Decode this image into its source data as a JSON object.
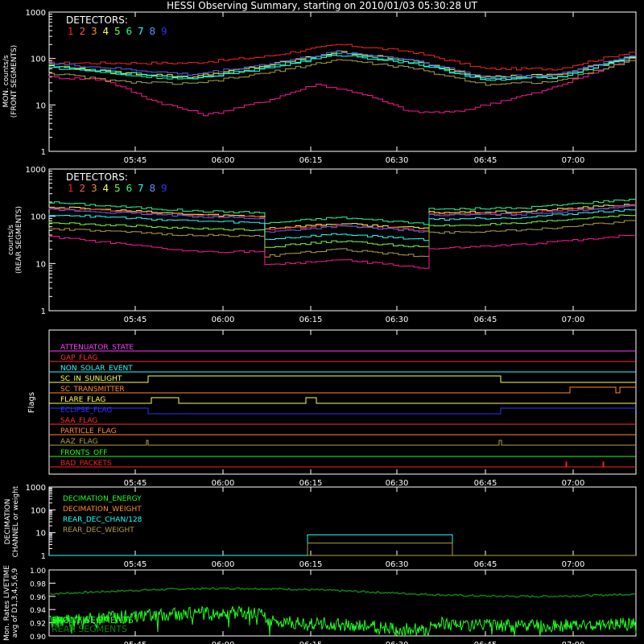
{
  "title": "HESSI Observing Summary, starting on 2010/01/03 05:30:28 UT",
  "time_ticks": [
    "05:45",
    "06:00",
    "06:15",
    "06:30",
    "06:45",
    "07:00"
  ],
  "detectors_label": "DETECTORS:",
  "detector_numbers": [
    "1",
    "2",
    "3",
    "4",
    "5",
    "6",
    "7",
    "8",
    "9"
  ],
  "detector_colors": [
    "#ff2020",
    "#ff5050",
    "#ff8a30",
    "#ffff50",
    "#7cff30",
    "#20ff90",
    "#20ffff",
    "#6090ff",
    "#3030ff"
  ],
  "chart_data": [
    {
      "type": "line",
      "name": "front",
      "ylabel": [
        "MON. counts/s",
        "(FRONT SEGMENTS)"
      ],
      "y_tick_labels": [
        "1",
        "10",
        "100",
        "1000"
      ],
      "ylim": [
        1,
        1000
      ],
      "log_y": true,
      "x_range_minutes_after_0530": [
        0,
        80
      ],
      "series": [
        {
          "color": "#ff2020",
          "values": [
            [
              0,
              80
            ],
            [
              10,
              80
            ],
            [
              20,
              80
            ],
            [
              30,
              110
            ],
            [
              40,
              200
            ],
            [
              50,
              140
            ],
            [
              60,
              60
            ],
            [
              70,
              60
            ],
            [
              80,
              140
            ]
          ]
        },
        {
          "color": "#ff1493",
          "values": [
            [
              0,
              40
            ],
            [
              8,
              35
            ],
            [
              15,
              12
            ],
            [
              22,
              6
            ],
            [
              30,
              12
            ],
            [
              37,
              28
            ],
            [
              43,
              18
            ],
            [
              50,
              7
            ],
            [
              56,
              7
            ],
            [
              62,
              12
            ],
            [
              68,
              20
            ],
            [
              75,
              50
            ],
            [
              80,
              100
            ]
          ]
        },
        {
          "color": "#ffff50",
          "values": [
            [
              0,
              70
            ],
            [
              10,
              50
            ],
            [
              20,
              40
            ],
            [
              30,
              70
            ],
            [
              40,
              140
            ],
            [
              50,
              90
            ],
            [
              60,
              40
            ],
            [
              70,
              45
            ],
            [
              80,
              110
            ]
          ]
        },
        {
          "color": "#20ff90",
          "values": [
            [
              0,
              75
            ],
            [
              10,
              45
            ],
            [
              20,
              35
            ],
            [
              30,
              65
            ],
            [
              40,
              130
            ],
            [
              50,
              85
            ],
            [
              60,
              35
            ],
            [
              70,
              40
            ],
            [
              80,
              110
            ]
          ]
        },
        {
          "color": "#20ffff",
          "values": [
            [
              0,
              65
            ],
            [
              10,
              50
            ],
            [
              20,
              38
            ],
            [
              30,
              60
            ],
            [
              40,
              120
            ],
            [
              50,
              80
            ],
            [
              60,
              35
            ],
            [
              70,
              40
            ],
            [
              80,
              105
            ]
          ]
        },
        {
          "color": "#6060ff",
          "values": [
            [
              0,
              80
            ],
            [
              10,
              60
            ],
            [
              20,
              45
            ],
            [
              30,
              75
            ],
            [
              40,
              140
            ],
            [
              50,
              95
            ],
            [
              60,
              40
            ],
            [
              70,
              45
            ],
            [
              80,
              120
            ]
          ]
        },
        {
          "color": "#b0a040",
          "values": [
            [
              0,
              50
            ],
            [
              10,
              32
            ],
            [
              20,
              28
            ],
            [
              30,
              48
            ],
            [
              40,
              95
            ],
            [
              50,
              62
            ],
            [
              60,
              28
            ],
            [
              70,
              32
            ],
            [
              80,
              90
            ]
          ]
        }
      ]
    },
    {
      "type": "line",
      "name": "rear",
      "ylabel": [
        "counts/s",
        "(REAR SEGMENTS)"
      ],
      "y_tick_labels": [
        "1",
        "10",
        "100",
        "1000"
      ],
      "ylim": [
        1,
        1000
      ],
      "log_y": true,
      "x_range_minutes_after_0530": [
        0,
        80
      ],
      "series": [
        {
          "color": "#20ff90",
          "values": [
            [
              0,
              200
            ],
            [
              20,
              130
            ],
            [
              29.5,
              120
            ],
            [
              29.6,
              70
            ],
            [
              40,
              95
            ],
            [
              52,
              70
            ],
            [
              52.1,
              140
            ],
            [
              65,
              150
            ],
            [
              80,
              230
            ]
          ]
        },
        {
          "color": "#ffff50",
          "values": [
            [
              0,
              160
            ],
            [
              20,
              110
            ],
            [
              29.5,
              100
            ],
            [
              29.6,
              55
            ],
            [
              40,
              70
            ],
            [
              52,
              55
            ],
            [
              52.1,
              120
            ],
            [
              65,
              125
            ],
            [
              80,
              180
            ]
          ]
        },
        {
          "color": "#ff2020",
          "values": [
            [
              0,
              150
            ],
            [
              20,
              105
            ],
            [
              29.5,
              95
            ],
            [
              29.6,
              50
            ],
            [
              40,
              65
            ],
            [
              52,
              50
            ],
            [
              52.1,
              110
            ],
            [
              65,
              115
            ],
            [
              80,
              170
            ]
          ]
        },
        {
          "color": "#6060ff",
          "values": [
            [
              0,
              140
            ],
            [
              20,
              100
            ],
            [
              29.5,
              90
            ],
            [
              29.6,
              45
            ],
            [
              40,
              62
            ],
            [
              52,
              48
            ],
            [
              52.1,
              105
            ],
            [
              65,
              110
            ],
            [
              80,
              165
            ]
          ]
        },
        {
          "color": "#20ffff",
          "values": [
            [
              0,
              110
            ],
            [
              20,
              80
            ],
            [
              29.5,
              72
            ],
            [
              29.6,
              32
            ],
            [
              40,
              42
            ],
            [
              52,
              32
            ],
            [
              52.1,
              85
            ],
            [
              65,
              95
            ],
            [
              80,
              140
            ]
          ]
        },
        {
          "color": "#7cff30",
          "values": [
            [
              0,
              75
            ],
            [
              20,
              55
            ],
            [
              29.5,
              52
            ],
            [
              29.6,
              22
            ],
            [
              40,
              30
            ],
            [
              52,
              22
            ],
            [
              52.1,
              62
            ],
            [
              65,
              70
            ],
            [
              80,
              110
            ]
          ]
        },
        {
          "color": "#b0a040",
          "values": [
            [
              0,
              55
            ],
            [
              20,
              40
            ],
            [
              29.5,
              38
            ],
            [
              29.6,
              14
            ],
            [
              40,
              20
            ],
            [
              52,
              14
            ],
            [
              52.1,
              45
            ],
            [
              65,
              50
            ],
            [
              80,
              80
            ]
          ]
        },
        {
          "color": "#ff1493",
          "values": [
            [
              0,
              38
            ],
            [
              20,
              18
            ],
            [
              29.5,
              18
            ],
            [
              29.6,
              9
            ],
            [
              40,
              12
            ],
            [
              52,
              8
            ],
            [
              52.1,
              20
            ],
            [
              65,
              25
            ],
            [
              80,
              40
            ]
          ]
        }
      ]
    }
  ],
  "flags": {
    "ylabel": "Flags",
    "items": [
      {
        "label": "ATTENUATOR_STATE",
        "color": "#ff40ff"
      },
      {
        "label": "GAP_FLAG",
        "color": "#ff3030"
      },
      {
        "label": "NON_SOLAR_EVENT",
        "color": "#20ffff"
      },
      {
        "label": "SC_IN_SUNLIGHT",
        "color": "#ffff50"
      },
      {
        "label": "SC_TRANSMITTER",
        "color": "#ff8a30"
      },
      {
        "label": "FLARE_FLAG",
        "color": "#ffff50"
      },
      {
        "label": "ECLIPSE_FLAG",
        "color": "#3030ff"
      },
      {
        "label": "SAA_FLAG",
        "color": "#ff3030"
      },
      {
        "label": "PARTICLE_FLAG",
        "color": "#ff8a30"
      },
      {
        "label": "AAZ_FLAG",
        "color": "#b0a040"
      },
      {
        "label": "FRONTS_OFF",
        "color": "#20ff20"
      },
      {
        "label": "BAD_PACKETS",
        "color": "#ff2020"
      }
    ]
  },
  "decimation": {
    "ylabel": [
      "DECIMATION",
      "CHANNEL or weight"
    ],
    "y_tick_labels": [
      "1",
      "10",
      "100",
      "1000"
    ],
    "legend": [
      {
        "label": "DECIMATION_ENERGY",
        "color": "#20ff20"
      },
      {
        "label": "DECIMATION_WEIGHT",
        "color": "#ff8a30"
      },
      {
        "label": "REAR_DEC_CHAN/128",
        "color": "#20ffff"
      },
      {
        "label": "REAR_DEC_WEIGHT",
        "color": "#b0a040"
      }
    ]
  },
  "livetime": {
    "ylabel": [
      "Mon. Rates LIVETIME",
      "avg of D1,3,4,5,6,9"
    ],
    "y_tick_labels": [
      "0.90",
      "0.92",
      "0.94",
      "0.96",
      "0.98",
      "1.00"
    ],
    "ylim": [
      0.9,
      1.0
    ],
    "legend": [
      {
        "label": "FRONT SEGMENTS",
        "color": "#20ff20"
      },
      {
        "label": "REAR SEGMENTS",
        "color": "#108010"
      }
    ]
  }
}
